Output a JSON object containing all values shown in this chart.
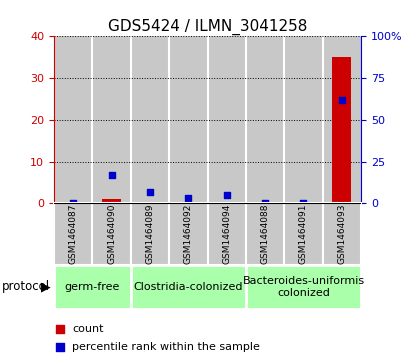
{
  "title": "GDS5424 / ILMN_3041258",
  "samples": [
    "GSM1464087",
    "GSM1464090",
    "GSM1464089",
    "GSM1464092",
    "GSM1464094",
    "GSM1464088",
    "GSM1464091",
    "GSM1464093"
  ],
  "counts": [
    0,
    1,
    0.3,
    0,
    0.2,
    0,
    0,
    35
  ],
  "percentiles": [
    0,
    17,
    7,
    3,
    5,
    0,
    0,
    62
  ],
  "protocols": [
    {
      "label": "germ-free",
      "start": 0,
      "end": 2
    },
    {
      "label": "Clostridia-colonized",
      "start": 2,
      "end": 5
    },
    {
      "label": "Bacteroides-uniformis\ncolonized",
      "start": 5,
      "end": 8
    }
  ],
  "left_ylim": [
    0,
    40
  ],
  "right_ylim": [
    0,
    100
  ],
  "left_yticks": [
    0,
    10,
    20,
    30,
    40
  ],
  "right_yticks": [
    0,
    25,
    50,
    75,
    100
  ],
  "right_yticklabels": [
    "0",
    "25",
    "50",
    "75",
    "100%"
  ],
  "bar_color": "#CC0000",
  "dot_color": "#0000CC",
  "dot_size": 25,
  "grid_color": "black",
  "sample_bg_color": "#C8C8C8",
  "proto_bg_color": "#AAFFAA",
  "left_tick_color": "#CC0000",
  "right_tick_color": "#0000CC",
  "plot_bg": "#FFFFFF",
  "title_fontsize": 11,
  "tick_fontsize": 8,
  "sample_fontsize": 6.5,
  "proto_fontsize": 8
}
